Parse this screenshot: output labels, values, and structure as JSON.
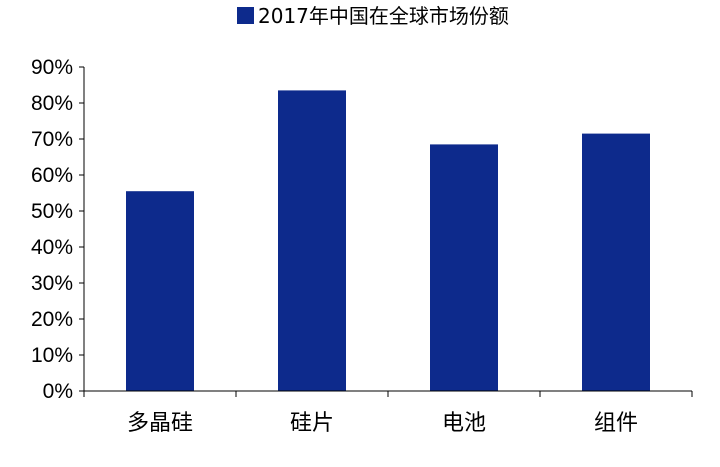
{
  "chart_data": {
    "type": "bar",
    "title": "",
    "xlabel": "",
    "ylabel": "",
    "categories": [
      "多晶硅",
      "硅片",
      "电池",
      "组件"
    ],
    "series": [
      {
        "name": "2017年中国在全球市场份额",
        "values": [
          55.5,
          83.5,
          68.5,
          71.5
        ],
        "color": "#0D2A8C"
      }
    ],
    "ylim": [
      0,
      90
    ],
    "ytick_values": [
      0,
      10,
      20,
      30,
      40,
      50,
      60,
      70,
      80,
      90
    ],
    "ytick_labels": [
      "0%",
      "10%",
      "20%",
      "30%",
      "40%",
      "50%",
      "60%",
      "70%",
      "80%",
      "90%"
    ],
    "grid": false,
    "legend": {
      "position": "top",
      "entries": [
        "2017年中国在全球市场份额"
      ]
    }
  }
}
